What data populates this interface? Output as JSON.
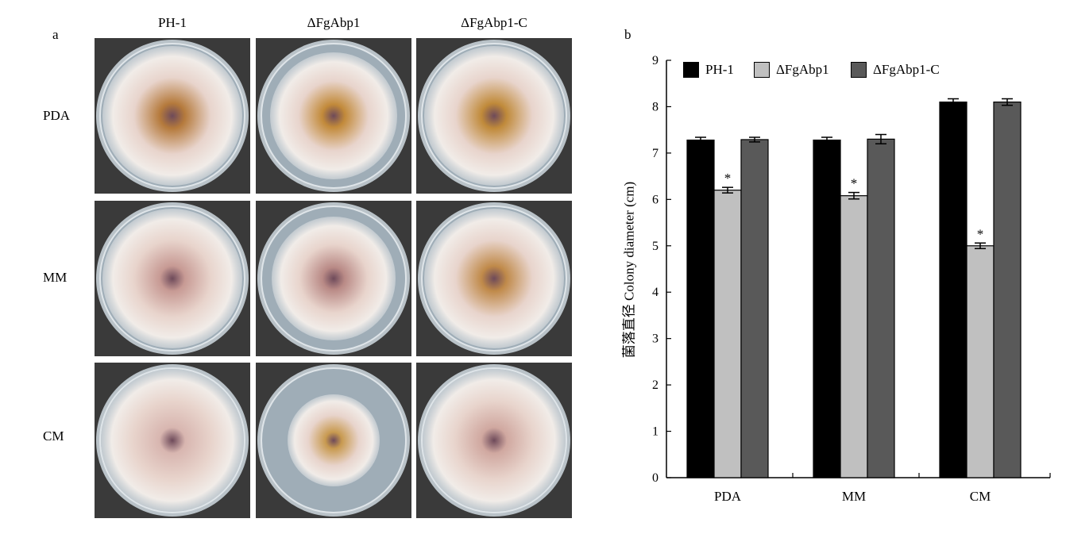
{
  "figure": {
    "panel_a_label": "a",
    "panel_b_label": "b",
    "strains": [
      "PH-1",
      "ΔFgAbp1",
      "ΔFgAbp1-C"
    ],
    "media": [
      "PDA",
      "MM",
      "CM"
    ]
  },
  "chart_data": {
    "type": "bar",
    "categories": [
      "PDA",
      "MM",
      "CM"
    ],
    "series": [
      {
        "name": "PH-1",
        "values": [
          7.28,
          7.28,
          8.1
        ],
        "errors": [
          0.06,
          0.06,
          0.07
        ],
        "color": "#000000"
      },
      {
        "name": "ΔFgAbp1",
        "values": [
          6.2,
          6.08,
          5.0
        ],
        "errors": [
          0.06,
          0.07,
          0.06
        ],
        "color": "#c0c0c0"
      },
      {
        "name": "ΔFgAbp1-C",
        "values": [
          7.29,
          7.3,
          8.1
        ],
        "errors": [
          0.05,
          0.1,
          0.07
        ],
        "color": "#595959"
      }
    ],
    "significance": [
      "*",
      "*",
      "*"
    ],
    "ylabel": "菌落直径 Colony diameter (cm)",
    "xlabel": "",
    "ylim": [
      0,
      9
    ],
    "yticks": [
      0,
      1,
      2,
      3,
      4,
      5,
      6,
      7,
      8,
      9
    ],
    "grid": false,
    "legend_position": "top"
  }
}
